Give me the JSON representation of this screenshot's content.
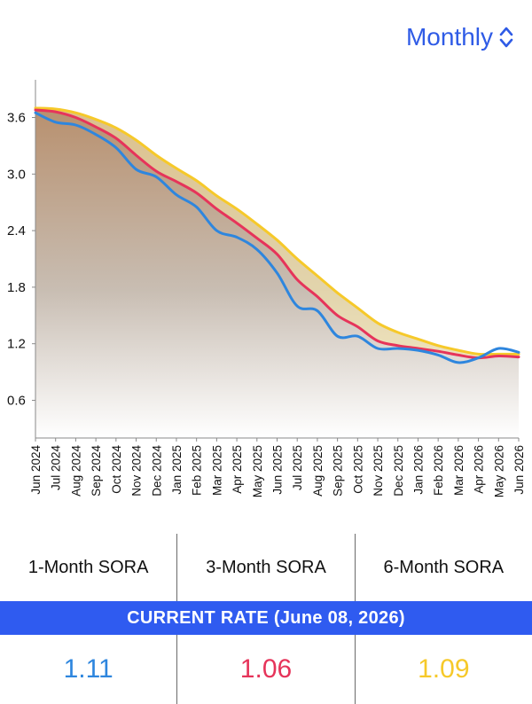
{
  "colors": {
    "accent": "#2f5be6",
    "banner": "#2f5bf0",
    "one_month": "#2e86de",
    "three_month": "#e6345a",
    "six_month": "#f6c92a"
  },
  "period_selector": {
    "label": "Monthly",
    "icon": "chevron-up-down-icon"
  },
  "chart_data": {
    "type": "line",
    "x": [
      "Jun 2024",
      "Jul 2024",
      "Aug 2024",
      "Sep 2024",
      "Oct 2024",
      "Nov 2024",
      "Dec 2024",
      "Jan 2025",
      "Feb 2025",
      "Mar 2025",
      "Apr 2025",
      "May 2025",
      "Jun 2025",
      "Jul 2025",
      "Aug 2025",
      "Sep 2025",
      "Oct 2025",
      "Nov 2025",
      "Dec 2025",
      "Jan 2026",
      "Feb 2026",
      "Mar 2026",
      "Apr 2026",
      "May 2026",
      "Jun 2026"
    ],
    "yticks": [
      "0.6",
      "1.2",
      "1.8",
      "2.4",
      "3.0",
      "3.6"
    ],
    "ylim": [
      0.2,
      4.0
    ],
    "grid": false,
    "series": [
      {
        "key": "one_month",
        "values": [
          3.65,
          3.55,
          3.52,
          3.42,
          3.28,
          3.05,
          2.97,
          2.78,
          2.65,
          2.4,
          2.33,
          2.2,
          1.95,
          1.6,
          1.55,
          1.28,
          1.28,
          1.15,
          1.15,
          1.13,
          1.08,
          1.0,
          1.05,
          1.15,
          1.11
        ]
      },
      {
        "key": "three_month",
        "values": [
          3.68,
          3.66,
          3.6,
          3.5,
          3.38,
          3.2,
          3.03,
          2.92,
          2.8,
          2.63,
          2.48,
          2.32,
          2.15,
          1.88,
          1.7,
          1.5,
          1.38,
          1.23,
          1.18,
          1.15,
          1.12,
          1.08,
          1.05,
          1.07,
          1.06
        ]
      },
      {
        "key": "six_month",
        "values": [
          3.7,
          3.69,
          3.65,
          3.58,
          3.49,
          3.36,
          3.2,
          3.06,
          2.93,
          2.77,
          2.63,
          2.47,
          2.3,
          2.1,
          1.92,
          1.74,
          1.58,
          1.42,
          1.32,
          1.25,
          1.18,
          1.13,
          1.09,
          1.09,
          1.09
        ]
      }
    ]
  },
  "rates_table": {
    "headers": [
      "1-Month SORA",
      "3-Month SORA",
      "6-Month SORA"
    ],
    "banner": "CURRENT RATE (June 08, 2026)",
    "values": [
      "1.11",
      "1.06",
      "1.09"
    ]
  }
}
